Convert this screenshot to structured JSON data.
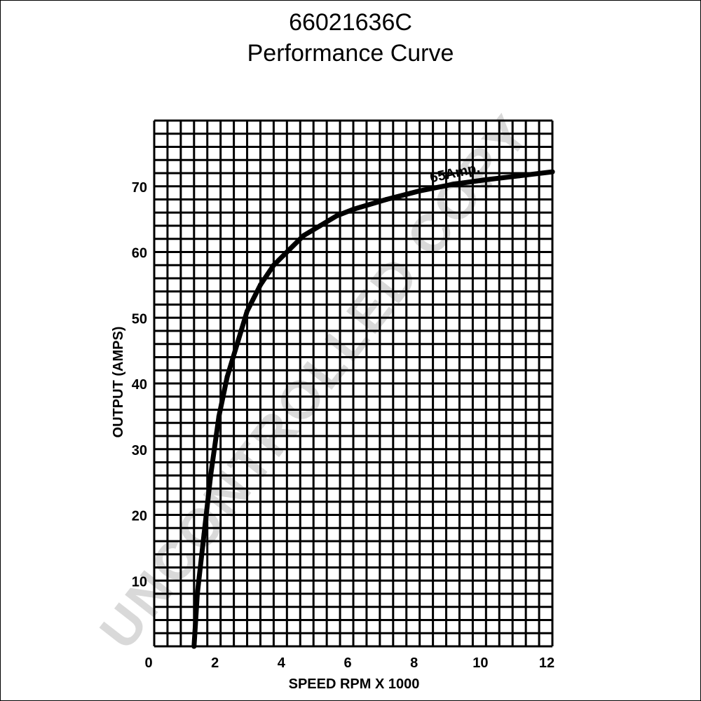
{
  "header": {
    "part_number": "66021636C",
    "subtitle": "Performance Curve"
  },
  "watermark": "UNCONTROLLED COPY",
  "chart_data": {
    "type": "line",
    "title": "Performance Curve",
    "xlabel": "SPEED  RPM  X  1000",
    "ylabel": "OUTPUT  (AMPS)",
    "xlim": [
      0,
      12
    ],
    "ylim": [
      0,
      80
    ],
    "x_ticks": [
      0,
      2,
      4,
      6,
      8,
      10,
      12
    ],
    "y_ticks": [
      10,
      20,
      30,
      40,
      50,
      60,
      70
    ],
    "grid": true,
    "series": [
      {
        "x": [
          1.2,
          1.3,
          1.5,
          1.7,
          1.95,
          2.2,
          2.5,
          2.8,
          3.2,
          3.6,
          4.0,
          4.5,
          5.0,
          5.5,
          6.0,
          7.0,
          8.0,
          9.0,
          10.0,
          11.0,
          12.0
        ],
        "y": [
          0,
          8,
          17,
          26,
          35,
          41,
          46,
          51,
          55,
          58,
          60,
          62.5,
          64,
          65.5,
          66.5,
          68,
          69.3,
          70.3,
          71,
          71.6,
          72.2
        ]
      }
    ],
    "annotations": [
      {
        "text": "65Amp.",
        "x": 9.4,
        "y": 71
      }
    ]
  }
}
